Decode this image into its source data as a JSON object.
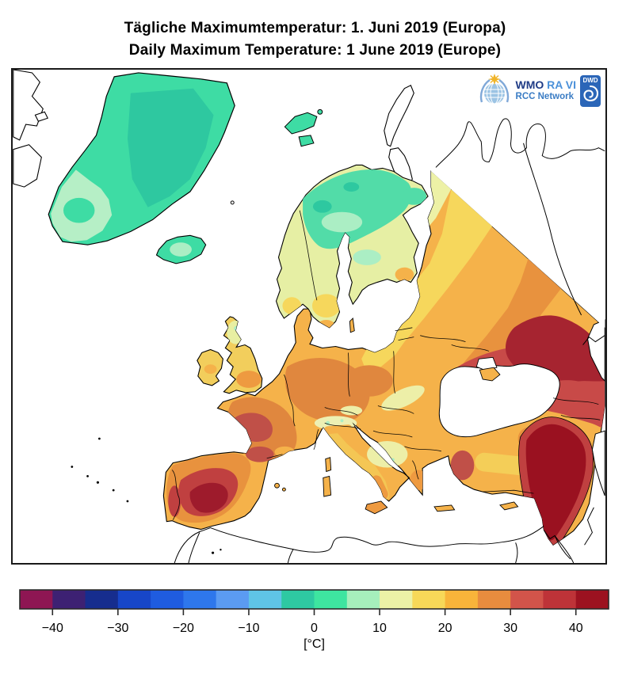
{
  "header": {
    "title_de": "Tägliche Maximumtemperatur:  1. Juni 2019  (Europa)",
    "title_en": "Daily Maximum Temperature:  1 June 2019  (Europe)"
  },
  "logo": {
    "wmo": "WMO",
    "ra": "RA VI",
    "rcc": "RCC Network",
    "dwd": "DWD"
  },
  "legend": {
    "unit": "[°C]",
    "min": -45,
    "max": 45,
    "step": 5,
    "colors": [
      "#8E1653",
      "#3D2173",
      "#162D8E",
      "#1746C8",
      "#1F5CE0",
      "#2E77EC",
      "#5B9BF2",
      "#5FC4E6",
      "#2EC9A2",
      "#3EE5A0",
      "#A6EFBC",
      "#ECF2A6",
      "#F7D858",
      "#F8B43A",
      "#E88C3E",
      "#D2544A",
      "#BE3338",
      "#9C1220"
    ],
    "ticks": [
      {
        "v": -40,
        "label": "−40"
      },
      {
        "v": -30,
        "label": "−30"
      },
      {
        "v": -20,
        "label": "−20"
      },
      {
        "v": -10,
        "label": "−10"
      },
      {
        "v": 0,
        "label": "0"
      },
      {
        "v": 10,
        "label": "10"
      },
      {
        "v": 20,
        "label": "20"
      },
      {
        "v": 30,
        "label": "30"
      },
      {
        "v": 40,
        "label": "40"
      }
    ]
  },
  "palette": {
    "sea": "#FFFFFF",
    "coast": "#000000",
    "green_mid": "#3EDCA4",
    "green_teal": "#2EC8A0",
    "green_bright": "#52DCA8",
    "mint": "#ABEEC4",
    "mint_pale": "#B6EFC6",
    "scand_base": "#E6EFA4",
    "band_paleyellow": "#EDF1A6",
    "yellow": "#F6D75C",
    "uk_yellow": "#F2CE5C",
    "uk_pale": "#E8EFA2",
    "amber": "#F5B24A",
    "orange": "#E8923E",
    "orange_deep": "#E0873E",
    "orange_it": "#EE9A40",
    "it_yellow": "#F4C654",
    "tr_yellow": "#F4CE58",
    "alps_pale": "#EDF0B4",
    "balk_pale": "#EDEFA8",
    "red": "#C84A48",
    "red_w": "#C05048",
    "red_ring": "#C04040",
    "dark_red": "#A62430",
    "dark_core": "#9E1B2C",
    "darkest": "#9A1120"
  }
}
